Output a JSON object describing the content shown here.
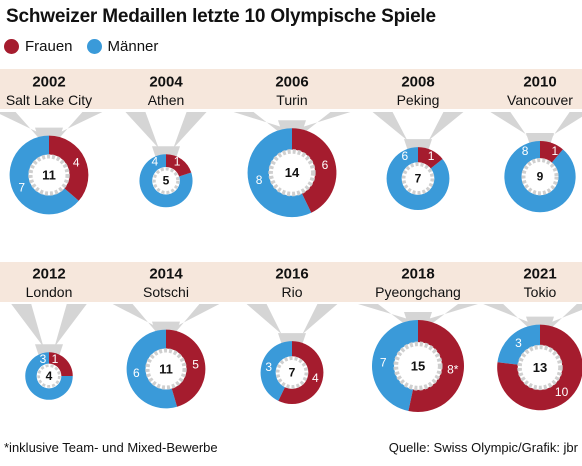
{
  "title": "Schweizer Medaillen letzte 10 Olympische Spiele",
  "legend": {
    "women_label": "Frauen",
    "men_label": "Männer"
  },
  "footnote": "*inklusive Team- und Mixed-Bewerbe",
  "source": "Quelle: Swiss Olympic/Grafik: jbr",
  "colors": {
    "women": "#a51c2e",
    "men": "#3a9ad9",
    "ribbon": "#d5d5d5",
    "band": "#f6e7dc",
    "wreath": "#cfcfcf"
  },
  "chart_data": {
    "type": "pie",
    "series_names": [
      "Frauen",
      "Männer"
    ],
    "games": [
      {
        "year": "2002",
        "city": "Salt Lake City",
        "women": 4,
        "men": 7,
        "total": 11,
        "women_label": "4",
        "men_label": "7",
        "total_label": "11"
      },
      {
        "year": "2004",
        "city": "Athen",
        "women": 1,
        "men": 4,
        "total": 5,
        "women_label": "1",
        "men_label": "4",
        "total_label": "5"
      },
      {
        "year": "2006",
        "city": "Turin",
        "women": 6,
        "men": 8,
        "total": 14,
        "women_label": "6",
        "men_label": "8",
        "total_label": "14"
      },
      {
        "year": "2008",
        "city": "Peking",
        "women": 1,
        "men": 6,
        "total": 7,
        "women_label": "1",
        "men_label": "6",
        "total_label": "7"
      },
      {
        "year": "2010",
        "city": "Vancouver",
        "women": 1,
        "men": 8,
        "total": 9,
        "women_label": "1",
        "men_label": "8",
        "total_label": "9"
      },
      {
        "year": "2012",
        "city": "London",
        "women": 1,
        "men": 3,
        "total": 4,
        "women_label": "1",
        "men_label": "3",
        "total_label": "4"
      },
      {
        "year": "2014",
        "city": "Sotschi",
        "women": 5,
        "men": 6,
        "total": 11,
        "women_label": "5",
        "men_label": "6",
        "total_label": "11"
      },
      {
        "year": "2016",
        "city": "Rio",
        "women": 4,
        "men": 3,
        "total": 7,
        "women_label": "4",
        "men_label": "3",
        "total_label": "7"
      },
      {
        "year": "2018",
        "city": "Pyeongchang",
        "women": 8,
        "men": 7,
        "total": 15,
        "women_label": "8*",
        "men_label": "7",
        "total_label": "15"
      },
      {
        "year": "2021",
        "city": "Tokio",
        "women": 10,
        "men": 3,
        "total": 13,
        "women_label": "10",
        "men_label": "3",
        "total_label": "13"
      }
    ]
  }
}
